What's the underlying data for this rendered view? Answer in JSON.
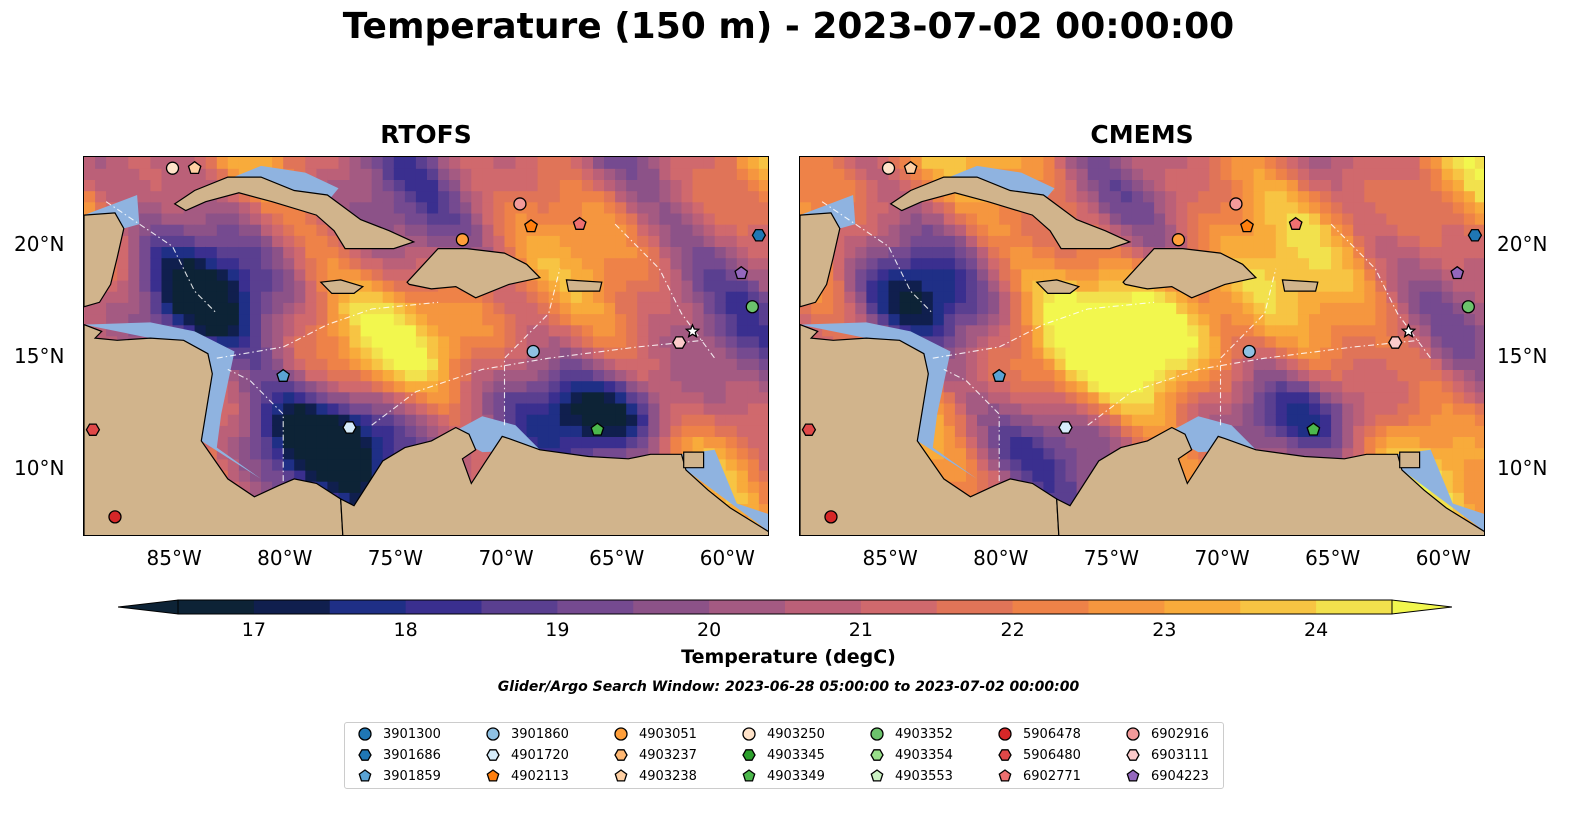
{
  "title": "Temperature (150 m) - 2023-07-02 00:00:00",
  "panels": [
    {
      "name": "rtofs",
      "title": "RTOFS"
    },
    {
      "name": "cmems",
      "title": "CMEMS"
    }
  ],
  "axes": {
    "lon_ticks": [
      "85°W",
      "80°W",
      "75°W",
      "70°W",
      "65°W",
      "60°W"
    ],
    "lat_ticks": [
      "20°N",
      "15°N",
      "10°N"
    ],
    "lon_range": [
      -89,
      -58
    ],
    "lat_range": [
      7,
      24
    ]
  },
  "colorbar": {
    "label": "Temperature (degC)",
    "ticks": [
      "17",
      "18",
      "19",
      "20",
      "21",
      "22",
      "23",
      "24"
    ],
    "range": [
      16.5,
      24.5
    ],
    "colors": [
      "#0d2336",
      "#101f4e",
      "#1f2f86",
      "#3a2f8f",
      "#5a3f90",
      "#754a90",
      "#8c5288",
      "#a45a82",
      "#bb6078",
      "#d0696d",
      "#e07458",
      "#ee8248",
      "#f5963f",
      "#f8ab3b",
      "#f7c443",
      "#f2e14d"
    ],
    "extend_low": "#0d2336",
    "extend_high": "#f2f74e"
  },
  "search_window": "Glider/Argo Search Window: 2023-06-28 05:00:00 to 2023-07-02 00:00:00",
  "legend": [
    {
      "id": "3901300",
      "marker": "circle",
      "color": "#1f77b4"
    },
    {
      "id": "3901686",
      "marker": "hexagon",
      "color": "#1f77b4"
    },
    {
      "id": "3901859",
      "marker": "pentagon",
      "color": "#5aa3d4"
    },
    {
      "id": "3901860",
      "marker": "circle",
      "color": "#8fc1e3"
    },
    {
      "id": "4901720",
      "marker": "hexagon",
      "color": "#d6ecfa"
    },
    {
      "id": "4902113",
      "marker": "pentagon",
      "color": "#ff7f0e"
    },
    {
      "id": "4903051",
      "marker": "circle",
      "color": "#ff9f3a"
    },
    {
      "id": "4903237",
      "marker": "hexagon",
      "color": "#ffb873"
    },
    {
      "id": "4903238",
      "marker": "pentagon",
      "color": "#ffd0a3"
    },
    {
      "id": "4903250",
      "marker": "circle",
      "color": "#ffe3c9"
    },
    {
      "id": "4903345",
      "marker": "hexagon",
      "color": "#2ca02c"
    },
    {
      "id": "4903349",
      "marker": "pentagon",
      "color": "#4cb84c"
    },
    {
      "id": "4903352",
      "marker": "circle",
      "color": "#6cc36c"
    },
    {
      "id": "4903354",
      "marker": "hexagon",
      "color": "#98df8a"
    },
    {
      "id": "4903553",
      "marker": "pentagon",
      "color": "#ccf2c4"
    },
    {
      "id": "5906478",
      "marker": "circle",
      "color": "#d62728"
    },
    {
      "id": "5906480",
      "marker": "hexagon",
      "color": "#e04848"
    },
    {
      "id": "6902771",
      "marker": "pentagon",
      "color": "#ee7070"
    },
    {
      "id": "6902916",
      "marker": "circle",
      "color": "#f29a9a"
    },
    {
      "id": "6903111",
      "marker": "hexagon",
      "color": "#fbcaca"
    },
    {
      "id": "6904223",
      "marker": "pentagon",
      "color": "#9467bd"
    }
  ],
  "floats": [
    {
      "lon": -85.0,
      "lat": 23.5,
      "marker": "circle",
      "color": "#ffe3c9"
    },
    {
      "lon": -84.0,
      "lat": 23.5,
      "marker": "pentagon",
      "color": "#ffd0a3"
    },
    {
      "lon": -69.3,
      "lat": 21.9,
      "marker": "circle",
      "color": "#f29a9a"
    },
    {
      "lon": -68.8,
      "lat": 20.9,
      "marker": "pentagon",
      "color": "#ff7f0e"
    },
    {
      "lon": -71.9,
      "lat": 20.3,
      "marker": "circle",
      "color": "#ff9f3a"
    },
    {
      "lon": -66.6,
      "lat": 21.0,
      "marker": "pentagon",
      "color": "#ee7070"
    },
    {
      "lon": -58.5,
      "lat": 20.5,
      "marker": "hexagon",
      "color": "#1f77b4"
    },
    {
      "lon": -59.3,
      "lat": 18.8,
      "marker": "pentagon",
      "color": "#9467bd"
    },
    {
      "lon": -58.8,
      "lat": 17.3,
      "marker": "circle",
      "color": "#6cc36c"
    },
    {
      "lon": -61.5,
      "lat": 16.2,
      "marker": "star",
      "color": "#ffffff"
    },
    {
      "lon": -62.1,
      "lat": 15.7,
      "marker": "hexagon",
      "color": "#fbcaca"
    },
    {
      "lon": -68.7,
      "lat": 15.3,
      "marker": "circle",
      "color": "#8fc1e3"
    },
    {
      "lon": -80.0,
      "lat": 14.2,
      "marker": "pentagon",
      "color": "#5aa3d4"
    },
    {
      "lon": -77.0,
      "lat": 11.9,
      "marker": "hexagon",
      "color": "#d6ecfa"
    },
    {
      "lon": -65.8,
      "lat": 11.8,
      "marker": "pentagon",
      "color": "#4cb84c"
    },
    {
      "lon": -88.6,
      "lat": 11.8,
      "marker": "hexagon",
      "color": "#e04848"
    },
    {
      "lon": -87.6,
      "lat": 7.9,
      "marker": "circle",
      "color": "#d62728"
    }
  ]
}
